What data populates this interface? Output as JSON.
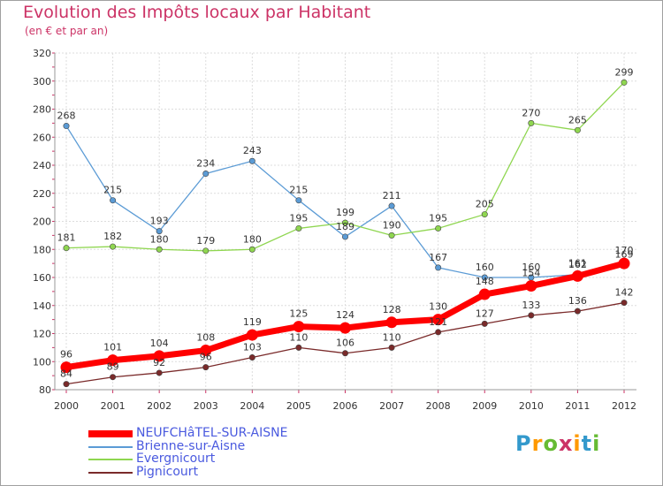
{
  "header": {
    "title": "Evolution des Impôts locaux par Habitant",
    "subtitle": "(en € et par an)"
  },
  "logo": {
    "text": "Proxiti",
    "letter_colors": [
      "#3399cc",
      "#ff9900",
      "#66bb33",
      "#cc3366",
      "#ff9900",
      "#3399cc",
      "#66bb33"
    ]
  },
  "colors": {
    "axis_text": "#333333",
    "grid": "#dddddd",
    "tick_mark": "#cc3366",
    "background": "#ffffff"
  },
  "chart_data": {
    "type": "line",
    "title": "Evolution des Impôts locaux par Habitant",
    "subtitle": "(en € et par an)",
    "x": [
      2000,
      2001,
      2002,
      2003,
      2004,
      2005,
      2006,
      2007,
      2008,
      2009,
      2010,
      2011,
      2012
    ],
    "x_tick_labels": [
      "2000",
      "2001",
      "2002",
      "2003",
      "2004",
      "2005",
      "2006",
      "2007",
      "2008",
      "2009",
      "2010",
      "2011",
      "2012"
    ],
    "ylim": [
      80,
      320
    ],
    "y_ticks": [
      80,
      100,
      120,
      140,
      160,
      180,
      200,
      220,
      240,
      260,
      280,
      300,
      320
    ],
    "y_tick_labels": [
      "80",
      "100",
      "120",
      "140",
      "160",
      "180",
      "200",
      "220",
      "240",
      "260",
      "280",
      "300",
      "320"
    ],
    "grid": true,
    "legend_position": "bottom-left",
    "series": [
      {
        "name": "NEUFCHâTEL-SUR-AISNE",
        "color": "#ff0000",
        "emphasis": true,
        "values": [
          96,
          101,
          104,
          108,
          119,
          125,
          124,
          128,
          130,
          148,
          154,
          161,
          170
        ],
        "labels": [
          "96",
          "101",
          "104",
          "108",
          "119",
          "125",
          "124",
          "128",
          "130",
          "148",
          "154",
          "161",
          "170"
        ]
      },
      {
        "name": "Brienne-sur-Aisne",
        "color": "#5b9bd5",
        "emphasis": false,
        "values": [
          268,
          215,
          193,
          234,
          243,
          215,
          189,
          211,
          167,
          160,
          160,
          162,
          169
        ],
        "labels": [
          "268",
          "215",
          "193",
          "234",
          "243",
          "215",
          "189",
          "211",
          "167",
          "160",
          "160",
          "162",
          "169"
        ]
      },
      {
        "name": "Evergnicourt",
        "color": "#8fd650",
        "emphasis": false,
        "values": [
          181,
          182,
          180,
          179,
          180,
          195,
          199,
          190,
          195,
          205,
          270,
          265,
          299
        ],
        "labels": [
          "181",
          "182",
          "180",
          "179",
          "180",
          "195",
          "199",
          "190",
          "195",
          "205",
          "270",
          "265",
          "299"
        ]
      },
      {
        "name": "Pignicourt",
        "color": "#7a2a2a",
        "emphasis": false,
        "values": [
          84,
          89,
          92,
          96,
          103,
          110,
          106,
          110,
          121,
          127,
          133,
          136,
          142
        ],
        "labels": [
          "84",
          "89",
          "92",
          "96",
          "103",
          "110",
          "106",
          "110",
          "121",
          "127",
          "133",
          "136",
          "142"
        ]
      }
    ]
  }
}
